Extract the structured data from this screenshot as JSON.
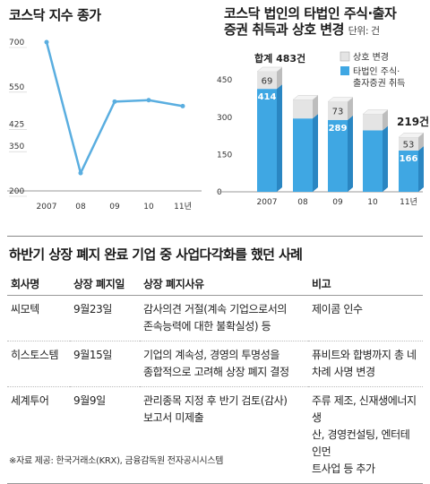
{
  "left_chart": {
    "title": "코스닥 지수 종가"
  },
  "right_chart": {
    "title_line1": "코스닥 법인의 타법인 주식·출자",
    "title_line2": "증권 취득과 상호 변경",
    "unit": "단위: 건",
    "total_label": "합계 483건",
    "last_total_label": "219건",
    "legend": [
      {
        "label": "상호 변경"
      },
      {
        "label": "타법인 주식·"
      },
      {
        "label": "출자증권 취득"
      }
    ]
  },
  "table": {
    "title": "하반기 상장 폐지 완료 기업 중 사업다각화를 했던 사례",
    "headers": [
      "회사명",
      "상장 폐지일",
      "상장 폐지사유",
      "비고"
    ],
    "rows": [
      {
        "company": "씨모텍",
        "date": "9월23일",
        "reason_lines": [
          "감사의견 거절(계속 기업으로서의",
          "존속능력에 대한 불확실성) 등"
        ],
        "note_lines": [
          "제이콤 인수"
        ]
      },
      {
        "company": "히스토스템",
        "date": "9월15일",
        "reason_lines": [
          "기업의 계속성, 경영의 투명성을",
          "종합적으로 고려해 상장 폐지 결정"
        ],
        "note_lines": [
          "퓨비트와 합병까지 총 네",
          "차례 사명 변경"
        ]
      },
      {
        "company": "세계투어",
        "date": "9월9일",
        "reason_lines": [
          "관리종목 지정 후 반기 검토(감사)",
          "보고서 미제출"
        ],
        "note_lines": [
          "주류 제조, 신재생에너지 생",
          "산, 경영컨설팅, 엔터테인먼",
          "트사업 등 추가"
        ]
      }
    ]
  },
  "source": "※자료 제공: 한국거래소(KRX), 금융감독원 전자공시시스템",
  "chart_data": [
    {
      "type": "line",
      "title": "코스닥 지수 종가",
      "x": [
        "2007",
        "08",
        "09",
        "10",
        "11년"
      ],
      "values": [
        700,
        260,
        500,
        505,
        485
      ],
      "yticks": [
        700,
        550,
        425,
        350,
        200
      ],
      "ylim": [
        200,
        700
      ],
      "grid": false,
      "colors": {
        "line": "#5aaee0"
      }
    },
    {
      "type": "bar",
      "stacked": true,
      "title": "코스닥 법인의 타법인 주식·출자 증권 취득과 상호 변경",
      "categories": [
        "2007",
        "08",
        "09",
        "10",
        "11년"
      ],
      "series": [
        {
          "name": "타법인 주식·출자증권 취득",
          "values": [
            414,
            295,
            289,
            247,
            166
          ]
        },
        {
          "name": "상호 변경",
          "values": [
            69,
            75,
            73,
            65,
            53
          ]
        }
      ],
      "data_labels": {
        "타법인 주식·출자증권 취득": [
          414,
          null,
          289,
          null,
          166
        ],
        "상호 변경": [
          69,
          null,
          73,
          null,
          53
        ]
      },
      "yticks": [
        0,
        150,
        300,
        450
      ],
      "ylim": [
        0,
        483
      ],
      "legend_position": "top-right",
      "colors": {
        "acquisition": "#3fa7e3",
        "name_change": "#e4e4e4"
      }
    }
  ]
}
